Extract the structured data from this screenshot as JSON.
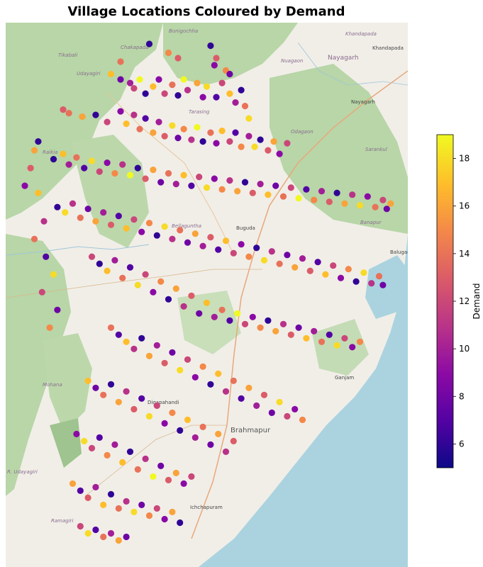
{
  "chart_data": {
    "type": "scatter",
    "title": "Village Locations Coloured by Demand",
    "colorbar": {
      "label": "Demand",
      "min": 5,
      "max": 19,
      "ticks": [
        6,
        8,
        10,
        12,
        14,
        16,
        18
      ],
      "colormap": "plasma"
    },
    "colormap_stops": [
      "#0d0887",
      "#5302a3",
      "#8b0aa5",
      "#b83289",
      "#db5c68",
      "#f48849",
      "#febd2a",
      "#f0f921"
    ],
    "basemap_labels": {
      "places": [
        "Bonigochha",
        "Chakapada",
        "Khandapada",
        "Khandapada",
        "Nayagarh",
        "Nayagarh",
        "Tikabali",
        "Udayagiri",
        "Nuagaon",
        "Sarankul",
        "Odagaon",
        "Raikia",
        "Buguda",
        "Banapur",
        "Balugaon",
        "Bellaguntha",
        "Mohana",
        "Digapahandi",
        "Brahmapur",
        "Ganjam",
        "R. Udayagiri",
        "Ichchapuram",
        "Ramagiri",
        "Tarasing"
      ],
      "city": "Brahmapur"
    },
    "points": [
      [
        84.2,
        20.5,
        6
      ],
      [
        84.3,
        20.45,
        15
      ],
      [
        84.35,
        20.42,
        13
      ],
      [
        84.52,
        20.49,
        6
      ],
      [
        84.55,
        20.42,
        13
      ],
      [
        84.54,
        20.38,
        9
      ],
      [
        84.6,
        20.35,
        15
      ],
      [
        84.62,
        20.33,
        8
      ],
      [
        84.05,
        20.4,
        14
      ],
      [
        84.0,
        20.33,
        17
      ],
      [
        84.05,
        20.3,
        8
      ],
      [
        84.1,
        20.28,
        10
      ],
      [
        84.12,
        20.25,
        12
      ],
      [
        84.15,
        20.3,
        19
      ],
      [
        84.18,
        20.22,
        6
      ],
      [
        84.22,
        20.26,
        17
      ],
      [
        84.25,
        20.3,
        9
      ],
      [
        84.28,
        20.22,
        12
      ],
      [
        84.32,
        20.27,
        14
      ],
      [
        84.35,
        20.21,
        6
      ],
      [
        84.38,
        20.3,
        19
      ],
      [
        84.4,
        20.24,
        11
      ],
      [
        84.45,
        20.28,
        16
      ],
      [
        84.48,
        20.2,
        9
      ],
      [
        84.5,
        20.26,
        18
      ],
      [
        84.55,
        20.2,
        7
      ],
      [
        84.58,
        20.28,
        12
      ],
      [
        84.62,
        20.22,
        17
      ],
      [
        84.65,
        20.17,
        10
      ],
      [
        84.68,
        20.24,
        6
      ],
      [
        84.7,
        20.15,
        14
      ],
      [
        84.72,
        20.08,
        18
      ],
      [
        83.75,
        20.13,
        13
      ],
      [
        83.78,
        20.11,
        14
      ],
      [
        83.85,
        20.09,
        16
      ],
      [
        83.92,
        20.1,
        6
      ],
      [
        83.98,
        20.06,
        12
      ],
      [
        84.05,
        20.12,
        9
      ],
      [
        84.08,
        20.05,
        17
      ],
      [
        84.12,
        20.1,
        11
      ],
      [
        84.15,
        20.02,
        14
      ],
      [
        84.18,
        20.08,
        7
      ],
      [
        84.22,
        20.0,
        16
      ],
      [
        84.25,
        20.06,
        10
      ],
      [
        84.28,
        19.98,
        13
      ],
      [
        84.32,
        20.04,
        18
      ],
      [
        84.35,
        19.97,
        8
      ],
      [
        84.38,
        20.02,
        15
      ],
      [
        84.42,
        19.96,
        11
      ],
      [
        84.45,
        20.03,
        19
      ],
      [
        84.48,
        19.95,
        6
      ],
      [
        84.52,
        20.0,
        14
      ],
      [
        84.55,
        19.94,
        9
      ],
      [
        84.58,
        20.01,
        17
      ],
      [
        84.62,
        19.95,
        12
      ],
      [
        84.65,
        20.0,
        7
      ],
      [
        84.68,
        19.92,
        15
      ],
      [
        84.72,
        19.98,
        10
      ],
      [
        84.75,
        19.92,
        18
      ],
      [
        84.78,
        19.96,
        6
      ],
      [
        84.82,
        19.9,
        13
      ],
      [
        84.85,
        19.95,
        16
      ],
      [
        84.88,
        19.88,
        9
      ],
      [
        84.92,
        19.94,
        12
      ],
      [
        83.7,
        19.85,
        6
      ],
      [
        83.75,
        19.88,
        17
      ],
      [
        83.78,
        19.82,
        10
      ],
      [
        83.82,
        19.86,
        14
      ],
      [
        83.86,
        19.8,
        7
      ],
      [
        83.9,
        19.84,
        18
      ],
      [
        83.94,
        19.78,
        12
      ],
      [
        83.98,
        19.83,
        9
      ],
      [
        84.02,
        19.77,
        15
      ],
      [
        84.06,
        19.82,
        11
      ],
      [
        84.1,
        19.76,
        19
      ],
      [
        84.14,
        19.8,
        6
      ],
      [
        84.18,
        19.74,
        13
      ],
      [
        84.22,
        19.79,
        16
      ],
      [
        84.26,
        19.72,
        8
      ],
      [
        84.3,
        19.77,
        14
      ],
      [
        84.34,
        19.71,
        10
      ],
      [
        84.38,
        19.76,
        17
      ],
      [
        84.42,
        19.7,
        7
      ],
      [
        84.46,
        19.75,
        12
      ],
      [
        84.5,
        19.69,
        18
      ],
      [
        84.54,
        19.74,
        9
      ],
      [
        84.58,
        19.68,
        15
      ],
      [
        84.62,
        19.73,
        11
      ],
      [
        84.66,
        19.67,
        16
      ],
      [
        84.7,
        19.72,
        6
      ],
      [
        84.74,
        19.66,
        13
      ],
      [
        84.78,
        19.71,
        10
      ],
      [
        84.82,
        19.65,
        17
      ],
      [
        84.86,
        19.7,
        8
      ],
      [
        84.9,
        19.64,
        14
      ],
      [
        84.94,
        19.69,
        12
      ],
      [
        84.98,
        19.63,
        19
      ],
      [
        85.02,
        19.68,
        7
      ],
      [
        85.06,
        19.62,
        15
      ],
      [
        85.1,
        19.67,
        10
      ],
      [
        85.14,
        19.61,
        13
      ],
      [
        85.18,
        19.66,
        6
      ],
      [
        85.22,
        19.6,
        16
      ],
      [
        85.26,
        19.65,
        11
      ],
      [
        85.3,
        19.59,
        18
      ],
      [
        85.34,
        19.64,
        9
      ],
      [
        85.38,
        19.58,
        14
      ],
      [
        85.42,
        19.62,
        12
      ],
      [
        85.44,
        19.57,
        8
      ],
      [
        85.46,
        19.6,
        16
      ],
      [
        83.72,
        19.58,
        6
      ],
      [
        83.76,
        19.55,
        18
      ],
      [
        83.8,
        19.6,
        11
      ],
      [
        83.84,
        19.52,
        14
      ],
      [
        83.88,
        19.57,
        8
      ],
      [
        83.92,
        19.5,
        16
      ],
      [
        83.96,
        19.55,
        10
      ],
      [
        84.0,
        19.48,
        13
      ],
      [
        84.04,
        19.53,
        7
      ],
      [
        84.08,
        19.46,
        17
      ],
      [
        84.12,
        19.51,
        12
      ],
      [
        84.16,
        19.44,
        9
      ],
      [
        84.2,
        19.49,
        15
      ],
      [
        84.24,
        19.42,
        6
      ],
      [
        84.28,
        19.47,
        18
      ],
      [
        84.32,
        19.4,
        11
      ],
      [
        84.36,
        19.45,
        14
      ],
      [
        84.4,
        19.38,
        8
      ],
      [
        84.44,
        19.43,
        16
      ],
      [
        84.48,
        19.36,
        10
      ],
      [
        84.52,
        19.41,
        13
      ],
      [
        84.56,
        19.34,
        7
      ],
      [
        84.6,
        19.39,
        17
      ],
      [
        84.64,
        19.32,
        12
      ],
      [
        84.68,
        19.37,
        9
      ],
      [
        84.72,
        19.3,
        15
      ],
      [
        84.76,
        19.35,
        6
      ],
      [
        84.8,
        19.28,
        18
      ],
      [
        84.84,
        19.33,
        11
      ],
      [
        84.88,
        19.26,
        14
      ],
      [
        84.92,
        19.31,
        8
      ],
      [
        84.96,
        19.24,
        16
      ],
      [
        85.0,
        19.29,
        10
      ],
      [
        85.04,
        19.22,
        13
      ],
      [
        85.08,
        19.27,
        7
      ],
      [
        85.12,
        19.2,
        17
      ],
      [
        85.16,
        19.25,
        12
      ],
      [
        85.2,
        19.18,
        9
      ],
      [
        85.24,
        19.23,
        15
      ],
      [
        85.28,
        19.16,
        6
      ],
      [
        85.32,
        19.21,
        18
      ],
      [
        85.36,
        19.15,
        11
      ],
      [
        85.4,
        19.19,
        14
      ],
      [
        85.42,
        19.14,
        8
      ],
      [
        83.9,
        19.3,
        12
      ],
      [
        83.94,
        19.26,
        6
      ],
      [
        83.98,
        19.22,
        17
      ],
      [
        84.02,
        19.28,
        10
      ],
      [
        84.06,
        19.18,
        14
      ],
      [
        84.1,
        19.24,
        7
      ],
      [
        84.14,
        19.14,
        18
      ],
      [
        84.18,
        19.2,
        12
      ],
      [
        84.22,
        19.1,
        9
      ],
      [
        84.26,
        19.16,
        15
      ],
      [
        84.3,
        19.06,
        6
      ],
      [
        84.34,
        19.12,
        16
      ],
      [
        84.38,
        19.02,
        11
      ],
      [
        84.42,
        19.08,
        13
      ],
      [
        84.46,
        18.98,
        8
      ],
      [
        84.5,
        19.04,
        17
      ],
      [
        84.54,
        18.96,
        10
      ],
      [
        84.58,
        19.0,
        14
      ],
      [
        84.62,
        18.94,
        7
      ],
      [
        84.66,
        18.98,
        19
      ],
      [
        84.7,
        18.92,
        12
      ],
      [
        84.74,
        18.96,
        9
      ],
      [
        84.78,
        18.9,
        15
      ],
      [
        84.82,
        18.94,
        6
      ],
      [
        84.86,
        18.88,
        16
      ],
      [
        84.9,
        18.92,
        11
      ],
      [
        84.94,
        18.86,
        13
      ],
      [
        84.98,
        18.9,
        8
      ],
      [
        85.02,
        18.84,
        17
      ],
      [
        85.06,
        18.88,
        10
      ],
      [
        85.1,
        18.82,
        14
      ],
      [
        85.14,
        18.86,
        7
      ],
      [
        85.18,
        18.8,
        18
      ],
      [
        85.22,
        18.84,
        12
      ],
      [
        85.26,
        18.79,
        9
      ],
      [
        85.3,
        18.82,
        15
      ],
      [
        84.0,
        18.9,
        14
      ],
      [
        84.04,
        18.86,
        7
      ],
      [
        84.08,
        18.82,
        17
      ],
      [
        84.12,
        18.78,
        11
      ],
      [
        84.16,
        18.84,
        6
      ],
      [
        84.2,
        18.74,
        16
      ],
      [
        84.24,
        18.8,
        10
      ],
      [
        84.28,
        18.7,
        13
      ],
      [
        84.32,
        18.76,
        8
      ],
      [
        84.36,
        18.66,
        18
      ],
      [
        84.4,
        18.72,
        12
      ],
      [
        84.44,
        18.62,
        9
      ],
      [
        84.48,
        18.68,
        15
      ],
      [
        84.52,
        18.58,
        6
      ],
      [
        84.56,
        18.64,
        17
      ],
      [
        84.6,
        18.54,
        11
      ],
      [
        84.64,
        18.6,
        14
      ],
      [
        84.68,
        18.5,
        7
      ],
      [
        84.72,
        18.56,
        16
      ],
      [
        84.76,
        18.46,
        10
      ],
      [
        84.8,
        18.52,
        13
      ],
      [
        84.84,
        18.42,
        8
      ],
      [
        84.88,
        18.48,
        18
      ],
      [
        84.92,
        18.4,
        12
      ],
      [
        84.96,
        18.44,
        9
      ],
      [
        85.0,
        18.38,
        15
      ],
      [
        83.88,
        18.6,
        17
      ],
      [
        83.92,
        18.56,
        8
      ],
      [
        83.96,
        18.52,
        14
      ],
      [
        84.0,
        18.58,
        6
      ],
      [
        84.04,
        18.48,
        16
      ],
      [
        84.08,
        18.54,
        11
      ],
      [
        84.12,
        18.44,
        13
      ],
      [
        84.16,
        18.5,
        7
      ],
      [
        84.2,
        18.4,
        18
      ],
      [
        84.24,
        18.46,
        12
      ],
      [
        84.28,
        18.36,
        9
      ],
      [
        84.32,
        18.42,
        15
      ],
      [
        84.36,
        18.32,
        6
      ],
      [
        84.4,
        18.38,
        17
      ],
      [
        84.44,
        18.28,
        10
      ],
      [
        84.48,
        18.34,
        14
      ],
      [
        84.52,
        18.24,
        8
      ],
      [
        84.56,
        18.3,
        16
      ],
      [
        84.6,
        18.2,
        11
      ],
      [
        84.64,
        18.26,
        13
      ],
      [
        83.82,
        18.3,
        9
      ],
      [
        83.86,
        18.26,
        18
      ],
      [
        83.9,
        18.22,
        12
      ],
      [
        83.94,
        18.28,
        7
      ],
      [
        83.98,
        18.18,
        15
      ],
      [
        84.02,
        18.24,
        10
      ],
      [
        84.06,
        18.14,
        17
      ],
      [
        84.1,
        18.2,
        6
      ],
      [
        84.14,
        18.1,
        14
      ],
      [
        84.18,
        18.16,
        11
      ],
      [
        84.22,
        18.06,
        19
      ],
      [
        84.26,
        18.12,
        8
      ],
      [
        84.3,
        18.04,
        13
      ],
      [
        84.34,
        18.08,
        16
      ],
      [
        84.38,
        18.02,
        9
      ],
      [
        84.42,
        18.06,
        12
      ],
      [
        83.8,
        18.02,
        16
      ],
      [
        83.84,
        17.98,
        7
      ],
      [
        83.88,
        17.94,
        13
      ],
      [
        83.92,
        18.0,
        10
      ],
      [
        83.96,
        17.9,
        17
      ],
      [
        84.0,
        17.96,
        6
      ],
      [
        84.04,
        17.88,
        14
      ],
      [
        84.08,
        17.92,
        11
      ],
      [
        84.12,
        17.86,
        18
      ],
      [
        84.16,
        17.9,
        8
      ],
      [
        84.2,
        17.84,
        15
      ],
      [
        84.24,
        17.88,
        12
      ],
      [
        84.28,
        17.82,
        9
      ],
      [
        84.32,
        17.86,
        16
      ],
      [
        84.36,
        17.8,
        6
      ],
      [
        83.84,
        17.78,
        12
      ],
      [
        83.88,
        17.74,
        18
      ],
      [
        83.92,
        17.76,
        7
      ],
      [
        83.96,
        17.72,
        14
      ],
      [
        84.0,
        17.74,
        10
      ],
      [
        84.04,
        17.7,
        16
      ],
      [
        84.08,
        17.72,
        8
      ],
      [
        83.6,
        19.9,
        16
      ],
      [
        83.62,
        19.95,
        6
      ],
      [
        83.58,
        19.8,
        13
      ],
      [
        83.55,
        19.7,
        9
      ],
      [
        83.62,
        19.66,
        17
      ],
      [
        83.65,
        19.5,
        11
      ],
      [
        83.6,
        19.4,
        14
      ],
      [
        83.66,
        19.3,
        7
      ],
      [
        83.7,
        19.2,
        18
      ],
      [
        83.64,
        19.1,
        12
      ],
      [
        83.72,
        19.0,
        8
      ],
      [
        83.68,
        18.9,
        15
      ]
    ]
  }
}
